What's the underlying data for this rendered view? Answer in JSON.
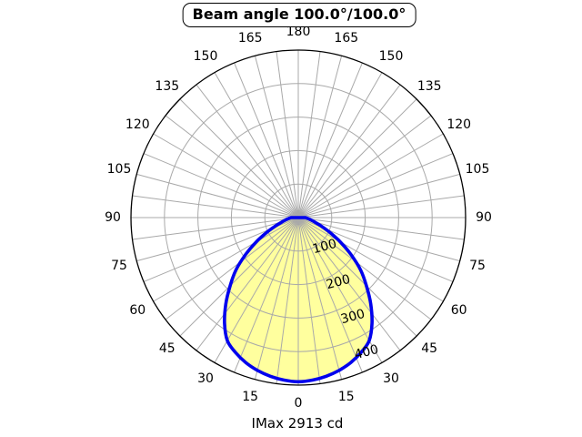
{
  "title": "Beam angle 100.0°/100.0°",
  "footer": "IMax 2913 cd",
  "chart_data": {
    "type": "line",
    "subtype": "polar-intensity-distribution",
    "title": "Beam angle 100.0°/100.0°",
    "footer": "IMax 2913 cd",
    "imax_cd": 2913,
    "beam_angle_deg": "100.0/100.0",
    "radial_ticks": [
      100,
      200,
      300,
      400
    ],
    "radial_max": 500,
    "angle_tick_labels": [
      0,
      15,
      30,
      45,
      60,
      75,
      90,
      105,
      120,
      135,
      150,
      165,
      180
    ],
    "spoke_step_deg": 7.5,
    "grid": "on",
    "series": [
      {
        "name": "luminous-intensity-curve",
        "symmetric": true,
        "angles_deg": [
          0,
          5,
          10,
          15,
          20,
          25,
          30,
          35,
          40,
          45,
          50,
          55,
          60,
          65,
          70,
          75,
          80,
          85,
          90
        ],
        "values": [
          490,
          487,
          481,
          472,
          460,
          444,
          424,
          384,
          337,
          288,
          243,
          192,
          145,
          103,
          72,
          51,
          37,
          28,
          22
        ]
      }
    ],
    "colors": {
      "curve": "#0000ee",
      "fill": "#ffff9e",
      "grid": "#a9a9a9",
      "axis": "#000000",
      "background": "#ffffff"
    }
  }
}
